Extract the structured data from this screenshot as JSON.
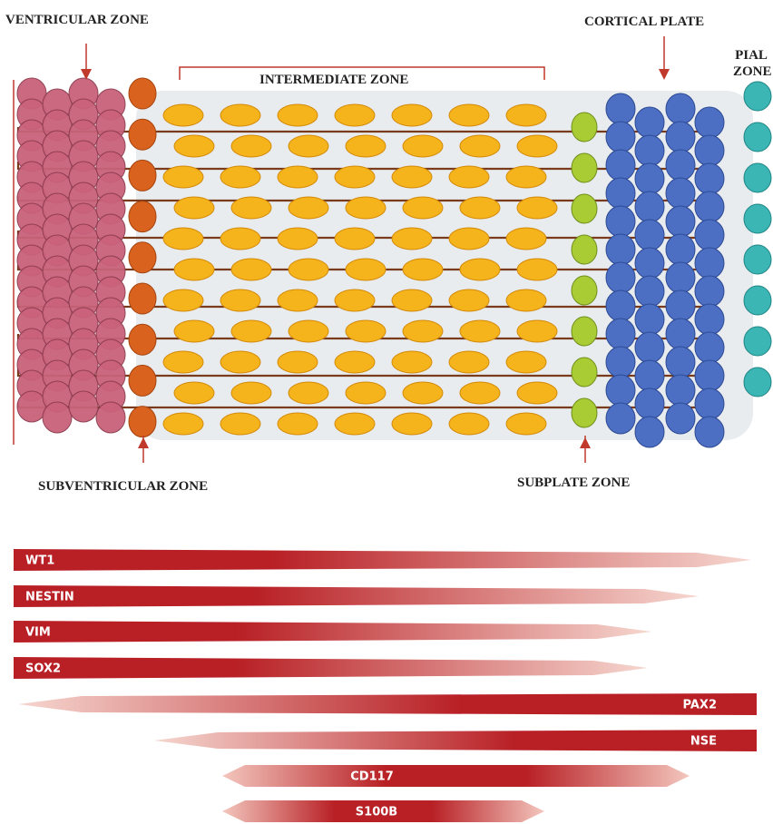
{
  "zones": [
    "VENTRICULAR ZONE",
    "INTERMEDIATE ZONE",
    "CORTICAL PLATE",
    "PIAL ZONE",
    "SUBVENTRICULAR ZONE",
    "SUBPLATE ZONE"
  ],
  "markers": [
    "WT1",
    "NESTIN",
    "VIM",
    "SOX2",
    "PAX2",
    "NSE",
    "CD117",
    "S100B"
  ]
}
